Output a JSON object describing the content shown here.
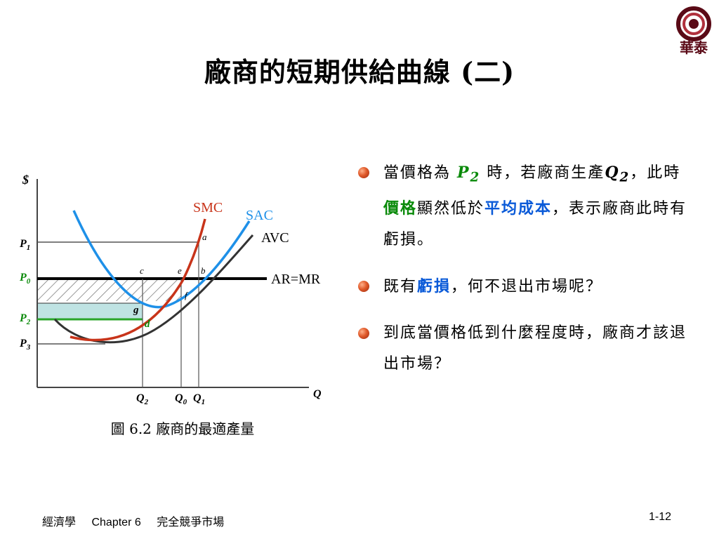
{
  "slide": {
    "title": "廠商的短期供給曲線 (二)",
    "logo_text": "華泰",
    "logo_colors": {
      "dark": "#5a0a16",
      "mid": "#b0303c"
    }
  },
  "graph": {
    "axis_y": "$",
    "axis_x": "Q",
    "curve_labels": {
      "smc": "SMC",
      "sac": "SAC",
      "avc": "AVC",
      "armr": "AR=MR"
    },
    "price_labels": [
      {
        "main": "P",
        "sub": "1",
        "color": "#000000"
      },
      {
        "main": "P",
        "sub": "0",
        "color": "#0a8a0a"
      },
      {
        "main": "P",
        "sub": "2",
        "color": "#0a8a0a"
      },
      {
        "main": "P",
        "sub": "3",
        "color": "#000000"
      }
    ],
    "q_labels": [
      {
        "main": "Q",
        "sub": "2"
      },
      {
        "main": "Q",
        "sub": "0"
      },
      {
        "main": "Q",
        "sub": "1"
      }
    ],
    "point_labels": [
      "a",
      "b",
      "c",
      "e",
      "f",
      "g",
      "d"
    ],
    "colors": {
      "smc": "#c8341a",
      "sac": "#1e90e8",
      "avc": "#333333",
      "armr": "#000000",
      "green_line": "#2aa52a",
      "loss_box": "#bfe3e3"
    },
    "caption": "圖 6.2 廠商的最適產量"
  },
  "bullets": [
    {
      "p1": "當價格為 ",
      "price_main": "P",
      "price_sub": "2",
      "p2": " 時，若廠商生產",
      "q_main": "Q",
      "q_sub": "2",
      "p3": "，此時",
      "g1": "價格",
      "p4": "顯然低於",
      "b1": "平均成本",
      "p5": "，表示廠商此時有虧損。"
    },
    {
      "p1": "既有",
      "b1": "虧損",
      "p2": "，何不退出市場呢？"
    },
    {
      "p1": "到底當價格低到什麼程度時，廠商才該退出市場？"
    }
  ],
  "footer": {
    "course": "經濟學",
    "chapter": "Chapter 6",
    "topic": "完全競爭市場",
    "page": "1-12"
  }
}
